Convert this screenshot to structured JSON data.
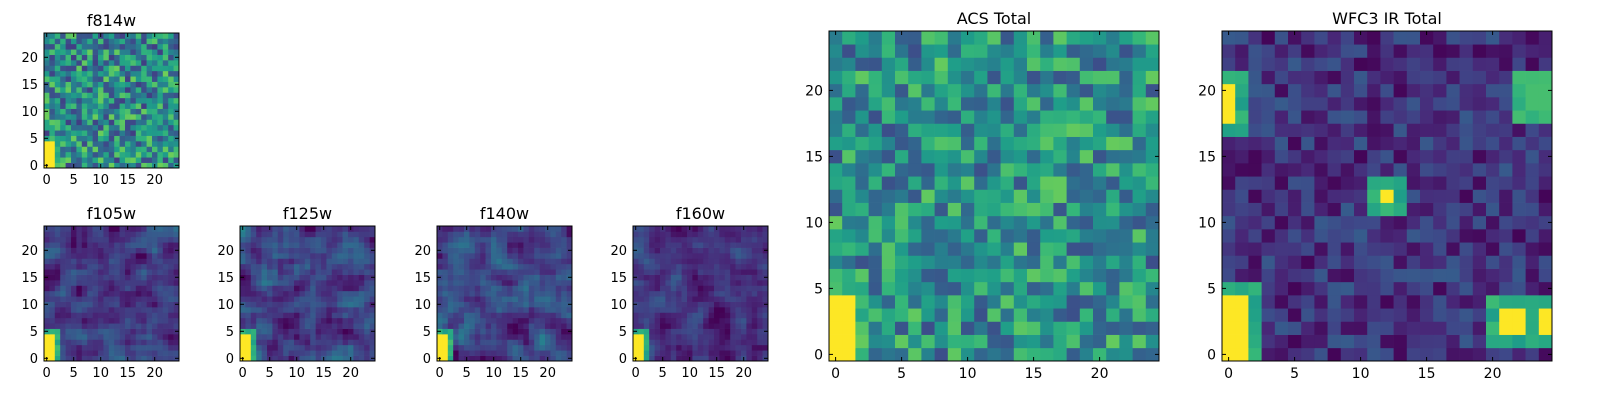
{
  "chart_data": [
    {
      "type": "heatmap",
      "title": "f814w",
      "xticks": [
        0,
        5,
        10,
        15,
        20
      ],
      "yticks": [
        0,
        5,
        10,
        15,
        20
      ],
      "xlim": [
        0,
        24
      ],
      "ylim": [
        0,
        24
      ],
      "grid": false,
      "colormap": "viridis",
      "pattern": "noisy",
      "base": 0.48,
      "noise": 0.3,
      "hot_spots": [
        {
          "x": 0,
          "y": 0,
          "w": 2,
          "h": 5,
          "level": 1.0
        }
      ]
    },
    {
      "type": "heatmap",
      "title": "f105w",
      "xticks": [
        0,
        5,
        10,
        15,
        20
      ],
      "yticks": [
        0,
        5,
        10,
        15,
        20
      ],
      "xlim": [
        0,
        24
      ],
      "ylim": [
        0,
        24
      ],
      "grid": false,
      "colormap": "viridis",
      "pattern": "smooth",
      "base": 0.16,
      "noise": 0.16,
      "hot_spots": [
        {
          "x": 0,
          "y": 0,
          "w": 2,
          "h": 5,
          "level": 1.0
        }
      ]
    },
    {
      "type": "heatmap",
      "title": "f125w",
      "xticks": [
        0,
        5,
        10,
        15,
        20
      ],
      "yticks": [
        0,
        5,
        10,
        15,
        20
      ],
      "xlim": [
        0,
        24
      ],
      "ylim": [
        0,
        24
      ],
      "grid": false,
      "colormap": "viridis",
      "pattern": "smooth",
      "base": 0.2,
      "noise": 0.18,
      "hot_spots": [
        {
          "x": 0,
          "y": 0,
          "w": 2,
          "h": 5,
          "level": 1.0
        }
      ]
    },
    {
      "type": "heatmap",
      "title": "f140w",
      "xticks": [
        0,
        5,
        10,
        15,
        20
      ],
      "yticks": [
        0,
        5,
        10,
        15,
        20
      ],
      "xlim": [
        0,
        24
      ],
      "ylim": [
        0,
        24
      ],
      "grid": false,
      "colormap": "viridis",
      "pattern": "smooth",
      "base": 0.2,
      "noise": 0.18,
      "hot_spots": [
        {
          "x": 0,
          "y": 0,
          "w": 2,
          "h": 5,
          "level": 1.0
        }
      ]
    },
    {
      "type": "heatmap",
      "title": "f160w",
      "xticks": [
        0,
        5,
        10,
        15,
        20
      ],
      "yticks": [
        0,
        5,
        10,
        15,
        20
      ],
      "xlim": [
        0,
        24
      ],
      "ylim": [
        0,
        24
      ],
      "grid": false,
      "colormap": "viridis",
      "pattern": "smooth",
      "base": 0.14,
      "noise": 0.14,
      "hot_spots": [
        {
          "x": 0,
          "y": 0,
          "w": 2,
          "h": 5,
          "level": 1.0
        }
      ]
    },
    {
      "type": "heatmap",
      "title": "ACS Total",
      "xticks": [
        0,
        5,
        10,
        15,
        20
      ],
      "yticks": [
        0,
        5,
        10,
        15,
        20
      ],
      "xlim": [
        0,
        24
      ],
      "ylim": [
        0,
        24
      ],
      "grid": false,
      "colormap": "viridis",
      "pattern": "noisy",
      "base": 0.5,
      "noise": 0.26,
      "hot_spots": [
        {
          "x": 0,
          "y": 0,
          "w": 2,
          "h": 5,
          "level": 1.0
        }
      ]
    },
    {
      "type": "heatmap",
      "title": "WFC3 IR Total",
      "xticks": [
        0,
        5,
        10,
        15,
        20
      ],
      "yticks": [
        0,
        5,
        10,
        15,
        20
      ],
      "xlim": [
        0,
        24
      ],
      "ylim": [
        0,
        24
      ],
      "grid": false,
      "colormap": "viridis",
      "pattern": "noisy",
      "base": 0.15,
      "noise": 0.14,
      "hot_spots": [
        {
          "x": 0,
          "y": 0,
          "w": 2,
          "h": 5,
          "level": 1.0
        },
        {
          "x": 21,
          "y": 2,
          "w": 2,
          "h": 2,
          "level": 1.0
        },
        {
          "x": 24,
          "y": 2,
          "w": 1,
          "h": 2,
          "level": 1.0
        },
        {
          "x": 0,
          "y": 18,
          "w": 1,
          "h": 3,
          "level": 1.0
        },
        {
          "x": 12,
          "y": 12,
          "w": 1,
          "h": 1,
          "level": 1.0
        },
        {
          "x": 23,
          "y": 19,
          "w": 2,
          "h": 2,
          "level": 0.7
        }
      ]
    }
  ]
}
